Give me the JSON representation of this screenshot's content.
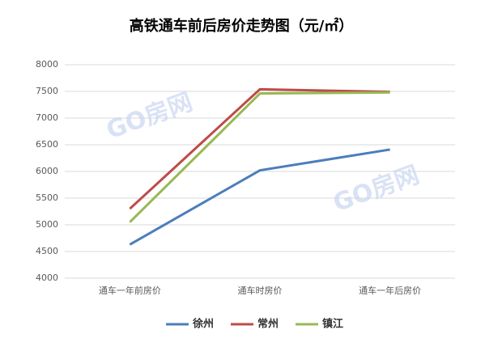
{
  "chart_data": {
    "type": "line",
    "title": "高铁通车前后房价走势图（元/㎡）",
    "categories": [
      "通车一年前房价",
      "通车时房价",
      "通车一年后房价"
    ],
    "series": [
      {
        "name": "徐州",
        "color": "#4a7ebb",
        "values": [
          4630,
          6020,
          6410
        ]
      },
      {
        "name": "常州",
        "color": "#be4b48",
        "values": [
          5300,
          7540,
          7490
        ]
      },
      {
        "name": "镇江",
        "color": "#98b954",
        "values": [
          5050,
          7460,
          7480
        ]
      }
    ],
    "ylim": [
      4000,
      8000
    ],
    "yticks": [
      4000,
      4500,
      5000,
      5500,
      6000,
      6500,
      7000,
      7500,
      8000
    ],
    "grid": true,
    "legend": "bottom",
    "watermark": "GO房网"
  }
}
